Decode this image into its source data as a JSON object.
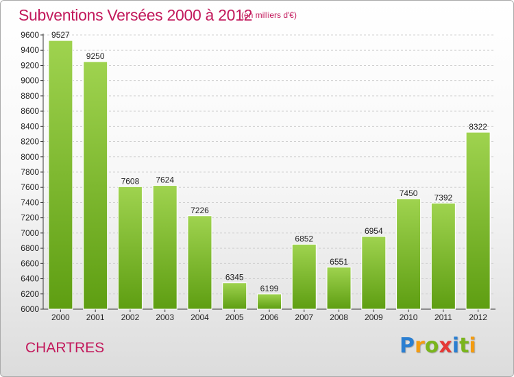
{
  "title": "Subventions Versées 2000 à 2012",
  "subtitle": "(en milliers d'€)",
  "city": "CHARTRES",
  "logo": {
    "letters": [
      "P",
      "r",
      "o",
      "x",
      "i",
      "t",
      "i"
    ],
    "colors": [
      "#2b7fd1",
      "#f39c12",
      "#7ab51d",
      "#e53935",
      "#2b7fd1",
      "#7ab51d",
      "#f39c12"
    ]
  },
  "colors": {
    "bar_top": "#9fd34f",
    "bar_bottom": "#5e9e12",
    "title": "#c2185b",
    "grid": "#d0d0d0"
  },
  "chart_data": {
    "type": "bar",
    "title": "Subventions Versées 2000 à 2012",
    "categories": [
      "2000",
      "2001",
      "2002",
      "2003",
      "2004",
      "2005",
      "2006",
      "2007",
      "2008",
      "2009",
      "2010",
      "2011",
      "2012"
    ],
    "values": [
      9527,
      9250,
      7608,
      7624,
      7226,
      6345,
      6199,
      6852,
      6551,
      6954,
      7450,
      7392,
      8322
    ],
    "ylim": [
      6000,
      9600
    ],
    "yticks": [
      "6000",
      "6200",
      "6400",
      "6600",
      "6800",
      "7000",
      "7200",
      "7400",
      "7600",
      "7800",
      "8000",
      "8200",
      "8400",
      "8600",
      "8800",
      "9000",
      "9200",
      "9400",
      "9600"
    ],
    "grid": "horizontal dashed",
    "legend": "none"
  }
}
